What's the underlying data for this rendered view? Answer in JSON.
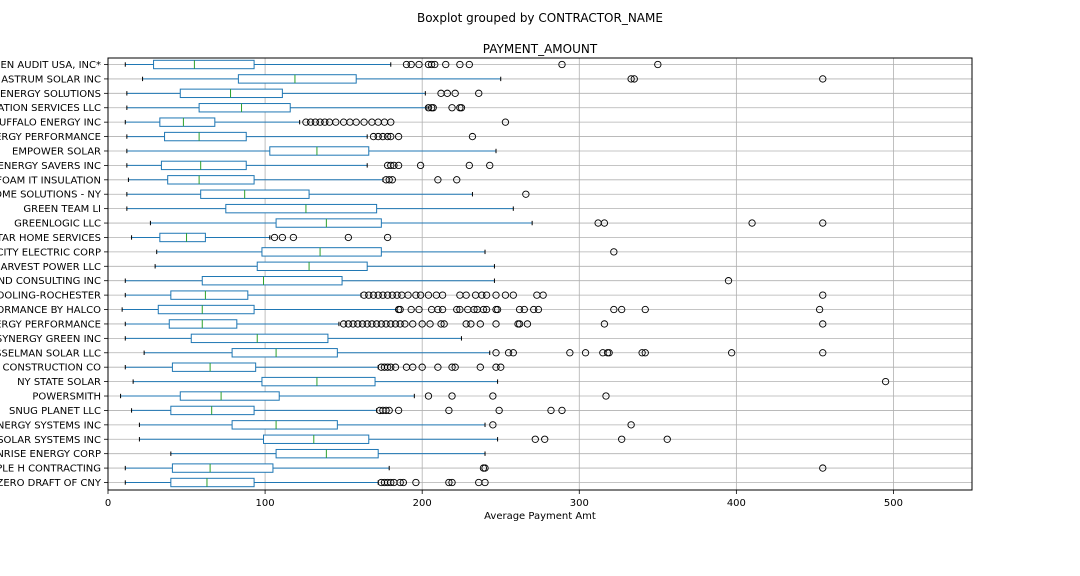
{
  "chart_data": {
    "type": "boxplot",
    "suptitle": "Boxplot grouped by CONTRACTOR_NAME",
    "title": "PAYMENT_AMOUNT",
    "xlabel": "Average Payment Amt",
    "ylabel": "",
    "xlim": [
      0,
      550
    ],
    "xticks": [
      0,
      100,
      200,
      300,
      400,
      500
    ],
    "grid": true,
    "colors": {
      "box": "#1f77b4",
      "median": "#2ca02c",
      "grid": "#b0b0b0"
    },
    "categories": [
      "ZERO DRAFT OF CNY",
      "PLE H CONTRACTING",
      "NRISE ENERGY CORP",
      "SOLAR SYSTEMS INC",
      "ENERGY SYSTEMS INC",
      "SNUG PLANET LLC",
      "POWERSMITH",
      "NY STATE SOLAR",
      "CONSTRUCTION CO",
      "SSELMAN SOLAR LLC",
      "SYNERGY GREEN INC",
      "ERGY PERFORMANCE",
      "FORMANCE BY HALCO",
      "OOLING-ROCHESTER",
      "ND CONSULTING INC",
      "HARVEST POWER LLC",
      "CITY ELECTRIC CORP",
      "TAR HOME SERVICES",
      "GREENLOGIC LLC",
      "GREEN TEAM LI",
      "HOME SOLUTIONS - NY",
      "FOAM IT INSULATION",
      "ENERGY SAVERS INC",
      "EMPOWER SOLAR",
      "ERGY PERFORMANCE",
      "UFFALO ENERGY INC",
      "ATION SERVICES LLC",
      "ENERGY SOLUTIONS",
      "ASTRUM SOLAR INC",
      "EEN AUDIT USA, INC*"
    ],
    "boxes": [
      {
        "whislo": 11,
        "q1": 40,
        "med": 63,
        "q3": 93,
        "whishi": 172,
        "fliers": [
          174,
          176,
          178,
          180,
          182,
          186,
          188,
          196,
          217,
          219,
          236,
          240
        ]
      },
      {
        "whislo": 11,
        "q1": 41,
        "med": 65,
        "q3": 105,
        "whishi": 179,
        "fliers": [
          239,
          240,
          455
        ]
      },
      {
        "whislo": 40,
        "q1": 107,
        "med": 139,
        "q3": 172,
        "whishi": 240,
        "fliers": []
      },
      {
        "whislo": 20,
        "q1": 99,
        "med": 131,
        "q3": 166,
        "whishi": 248,
        "fliers": [
          272,
          278,
          327,
          356
        ]
      },
      {
        "whislo": 20,
        "q1": 79,
        "med": 107,
        "q3": 146,
        "whishi": 240,
        "fliers": [
          245,
          333
        ]
      },
      {
        "whislo": 15,
        "q1": 40,
        "med": 66,
        "q3": 93,
        "whishi": 171,
        "fliers": [
          173,
          175,
          177,
          179,
          185,
          217,
          249,
          282,
          289
        ]
      },
      {
        "whislo": 8,
        "q1": 46,
        "med": 72,
        "q3": 109,
        "whishi": 195,
        "fliers": [
          204,
          219,
          245,
          317
        ]
      },
      {
        "whislo": 16,
        "q1": 98,
        "med": 133,
        "q3": 170,
        "whishi": 248,
        "fliers": [
          495
        ]
      },
      {
        "whislo": 11,
        "q1": 41,
        "med": 65,
        "q3": 94,
        "whishi": 172,
        "fliers": [
          174,
          176,
          178,
          180,
          183,
          190,
          194,
          200,
          210,
          219,
          221,
          237,
          247,
          250
        ]
      },
      {
        "whislo": 23,
        "q1": 79,
        "med": 107,
        "q3": 146,
        "whishi": 243,
        "fliers": [
          247,
          255,
          258,
          294,
          304,
          315,
          318,
          319,
          340,
          342,
          397,
          455
        ]
      },
      {
        "whislo": 11,
        "q1": 53,
        "med": 95,
        "q3": 140,
        "whishi": 225,
        "fliers": []
      },
      {
        "whislo": 11,
        "q1": 39,
        "med": 60,
        "q3": 82,
        "whishi": 147,
        "fliers": [
          150,
          153,
          156,
          159,
          162,
          165,
          168,
          171,
          174,
          177,
          180,
          183,
          186,
          189,
          194,
          200,
          205,
          212,
          214,
          228,
          231,
          237,
          247,
          261,
          262,
          267,
          316,
          455
        ]
      },
      {
        "whislo": 9,
        "q1": 32,
        "med": 60,
        "q3": 93,
        "whishi": 184,
        "fliers": [
          185,
          186,
          193,
          198,
          206,
          210,
          213,
          222,
          224,
          229,
          233,
          235,
          239,
          241,
          247,
          248,
          262,
          265,
          271,
          274,
          322,
          327,
          342,
          453
        ]
      },
      {
        "whislo": 11,
        "q1": 40,
        "med": 62,
        "q3": 89,
        "whishi": 161,
        "fliers": [
          163,
          166,
          169,
          172,
          175,
          178,
          181,
          184,
          187,
          191,
          196,
          199,
          204,
          209,
          213,
          224,
          228,
          234,
          238,
          241,
          247,
          253,
          258,
          273,
          277,
          455
        ]
      },
      {
        "whislo": 11,
        "q1": 60,
        "med": 99,
        "q3": 149,
        "whishi": 246,
        "fliers": [
          395
        ]
      },
      {
        "whislo": 30,
        "q1": 95,
        "med": 128,
        "q3": 165,
        "whishi": 246,
        "fliers": []
      },
      {
        "whislo": 31,
        "q1": 98,
        "med": 135,
        "q3": 174,
        "whishi": 240,
        "fliers": [
          322
        ]
      },
      {
        "whislo": 15,
        "q1": 33,
        "med": 50,
        "q3": 62,
        "whishi": 103,
        "fliers": [
          106,
          111,
          118,
          153,
          178
        ]
      },
      {
        "whislo": 27,
        "q1": 107,
        "med": 139,
        "q3": 174,
        "whishi": 270,
        "fliers": [
          312,
          316,
          410,
          455
        ]
      },
      {
        "whislo": 12,
        "q1": 75,
        "med": 126,
        "q3": 171,
        "whishi": 258,
        "fliers": []
      },
      {
        "whislo": 12,
        "q1": 59,
        "med": 87,
        "q3": 128,
        "whishi": 232,
        "fliers": [
          266
        ]
      },
      {
        "whislo": 13,
        "q1": 38,
        "med": 58,
        "q3": 93,
        "whishi": 175,
        "fliers": [
          177,
          179,
          181,
          210,
          222
        ]
      },
      {
        "whislo": 12,
        "q1": 34,
        "med": 59,
        "q3": 88,
        "whishi": 165,
        "fliers": [
          178,
          180,
          182,
          185,
          199,
          230,
          243
        ]
      },
      {
        "whislo": 12,
        "q1": 103,
        "med": 133,
        "q3": 166,
        "whishi": 247,
        "fliers": []
      },
      {
        "whislo": 12,
        "q1": 36,
        "med": 58,
        "q3": 88,
        "whishi": 165,
        "fliers": [
          169,
          172,
          175,
          178,
          180,
          185,
          232
        ]
      },
      {
        "whislo": 11,
        "q1": 33,
        "med": 48,
        "q3": 68,
        "whishi": 122,
        "fliers": [
          126,
          129,
          132,
          135,
          138,
          141,
          145,
          150,
          154,
          158,
          163,
          168,
          172,
          176,
          180,
          253
        ]
      },
      {
        "whislo": 12,
        "q1": 58,
        "med": 85,
        "q3": 116,
        "whishi": 203,
        "fliers": [
          204,
          206,
          207,
          219,
          224,
          225
        ]
      },
      {
        "whislo": 12,
        "q1": 46,
        "med": 78,
        "q3": 111,
        "whishi": 202,
        "fliers": [
          212,
          216,
          221,
          236
        ]
      },
      {
        "whislo": 22,
        "q1": 83,
        "med": 119,
        "q3": 158,
        "whishi": 250,
        "fliers": [
          333,
          335,
          455
        ]
      },
      {
        "whislo": 11,
        "q1": 29,
        "med": 55,
        "q3": 93,
        "whishi": 180,
        "fliers": [
          190,
          193,
          198,
          204,
          206,
          208,
          215,
          224,
          230,
          289,
          350
        ]
      }
    ]
  }
}
